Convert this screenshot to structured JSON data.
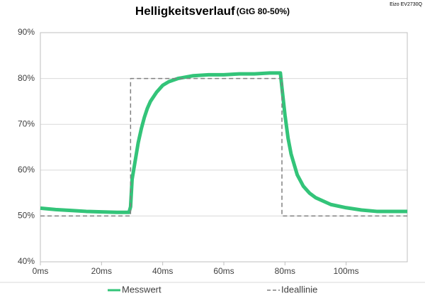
{
  "chart_data": {
    "type": "line",
    "title": "Helligkeitsverlauf",
    "subtitle": "(GtG 80-50%)",
    "source": "Eizo EV2730Q",
    "xlim": [
      0,
      120
    ],
    "xticks": [
      {
        "value": 0,
        "label": "0ms"
      },
      {
        "value": 20,
        "label": "20ms"
      },
      {
        "value": 40,
        "label": "40ms"
      },
      {
        "value": 60,
        "label": "60ms"
      },
      {
        "value": 80,
        "label": "80ms"
      },
      {
        "value": 100,
        "label": "100ms"
      }
    ],
    "ylim": [
      40,
      90
    ],
    "yticks": [
      {
        "value": 40,
        "label": "40%"
      },
      {
        "value": 50,
        "label": "50%"
      },
      {
        "value": 60,
        "label": "60%"
      },
      {
        "value": 70,
        "label": "70%"
      },
      {
        "value": 80,
        "label": "80%"
      },
      {
        "value": 90,
        "label": "90%"
      }
    ],
    "grid": true,
    "legend": "bottom",
    "series": [
      {
        "name": "Messwert",
        "color": "#33c479",
        "style": "solid",
        "x": [
          0,
          5,
          10,
          15,
          20,
          25,
          29,
          29.5,
          30,
          31,
          32,
          33,
          34,
          35,
          36,
          38,
          40,
          42,
          45,
          50,
          55,
          60,
          65,
          70,
          75,
          78.5,
          79,
          80,
          81,
          82,
          84,
          86,
          88,
          90,
          95,
          100,
          105,
          110,
          115,
          120
        ],
        "values": [
          51.7,
          51.4,
          51.2,
          51,
          50.9,
          50.8,
          50.8,
          52,
          58,
          62,
          66,
          69,
          71.5,
          73.5,
          75,
          77,
          78.5,
          79.3,
          80,
          80.6,
          80.8,
          80.8,
          81,
          81,
          81.2,
          81.2,
          78,
          72,
          67,
          63.5,
          59,
          56.5,
          55,
          54,
          52.5,
          51.8,
          51.3,
          51,
          51,
          51
        ]
      },
      {
        "name": "Ideallinie",
        "color": "#808080",
        "style": "dashed",
        "x": [
          0,
          29.5,
          29.5,
          79,
          79,
          120
        ],
        "values": [
          50,
          50,
          80,
          80,
          50,
          50
        ]
      }
    ]
  }
}
